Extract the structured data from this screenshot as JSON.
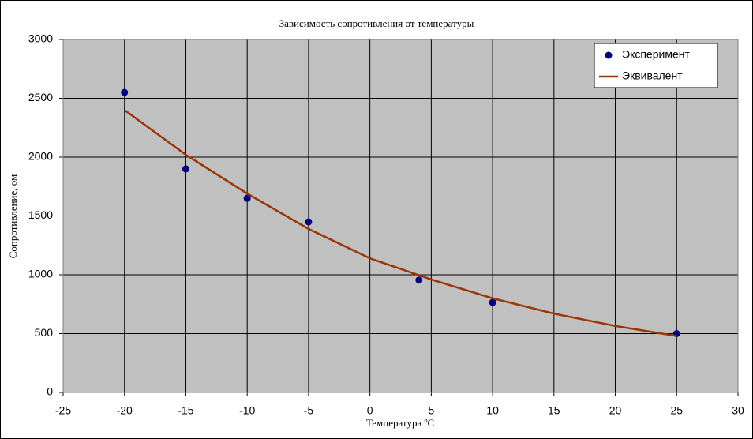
{
  "chart_data": {
    "type": "scatter",
    "title": "Зависимость сопротивления от температуры",
    "x_label": "Температура ºС",
    "y_label": "Сопротивление, ом",
    "series": [
      {
        "name": "Эксперимент",
        "color": "#000080",
        "style": "marker",
        "x": [
          -20,
          -15,
          -10,
          -5,
          4,
          10,
          25
        ],
        "values": [
          2550,
          1900,
          1650,
          1450,
          955,
          765,
          500
        ]
      },
      {
        "name": "Эквивалент",
        "color": "#993300",
        "style": "line",
        "x": [
          -20,
          -15,
          -10,
          -5,
          0,
          5,
          10,
          15,
          20,
          25
        ],
        "values": [
          2400,
          2020,
          1690,
          1390,
          1140,
          960,
          800,
          670,
          565,
          480
        ]
      }
    ],
    "xlim": [
      -25,
      30
    ],
    "xticks": [
      -25,
      -20,
      -15,
      -10,
      -5,
      0,
      5,
      10,
      15,
      20,
      25,
      30
    ],
    "ylim": [
      0,
      3000
    ],
    "yticks": [
      0,
      500,
      1000,
      1500,
      2000,
      2500,
      3000
    ],
    "grid": true,
    "legend": "top-right",
    "plot_background": "#c0c0c0"
  }
}
